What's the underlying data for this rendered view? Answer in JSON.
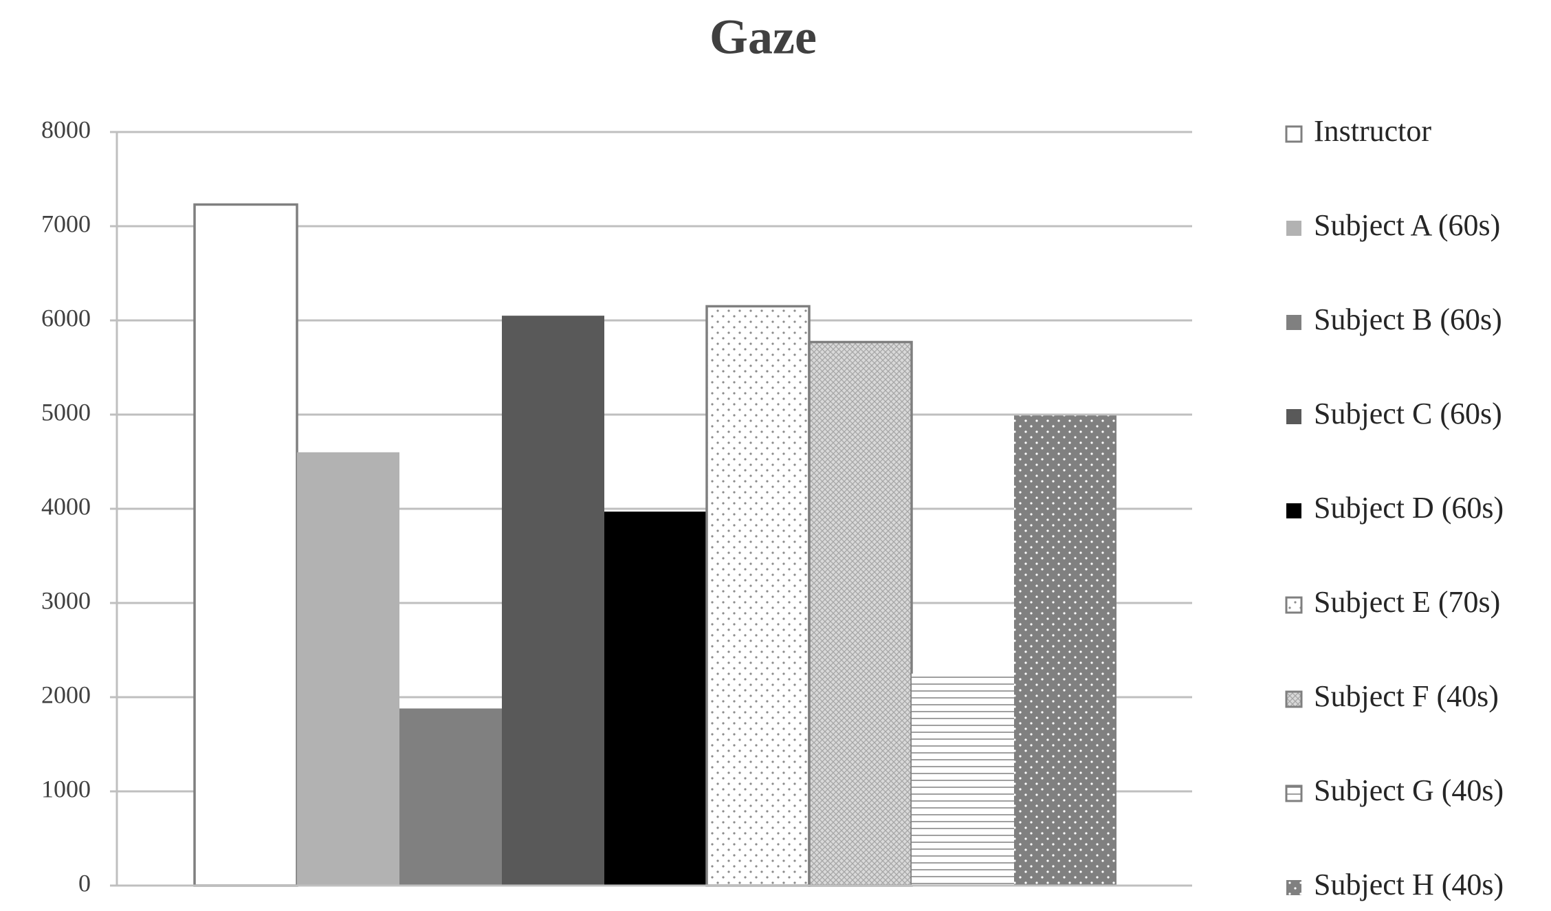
{
  "chart_data": {
    "type": "bar",
    "title": "Gaze",
    "series": [
      {
        "name": "Instructor",
        "color": "#ffffff",
        "edgecolor": "#7f7f7f",
        "values": [
          7230
        ]
      },
      {
        "name": "Subject A (60s)",
        "color": "#b2b2b2",
        "values": [
          4600
        ]
      },
      {
        "name": "Subject B (60s)",
        "color": "#808080",
        "values": [
          1880
        ]
      },
      {
        "name": "Subject C (60s)",
        "color": "#595959",
        "values": [
          6050
        ]
      },
      {
        "name": "Subject D (60s)",
        "color": "#000000",
        "values": [
          3970
        ]
      },
      {
        "name": "Subject E (70s)",
        "color": "#ffffff",
        "edgecolor": "#7f7f7f",
        "pattern": "dots",
        "values": [
          6150
        ]
      },
      {
        "name": "Subject F (40s)",
        "color": "#d9d9d9",
        "edgecolor": "#7f7f7f",
        "pattern": "crosshatch",
        "values": [
          5770
        ]
      },
      {
        "name": "Subject G (40s)",
        "color": "#ffffff",
        "pattern": "hlines",
        "values": [
          2250
        ]
      },
      {
        "name": "Subject H (40s)",
        "color": "#808080",
        "pattern": "dots",
        "values": [
          4990
        ]
      }
    ],
    "ylim": [
      0,
      8000
    ],
    "yticks": [
      0,
      1000,
      2000,
      3000,
      4000,
      5000,
      6000,
      7000,
      8000
    ],
    "grid": true,
    "legend": "right"
  }
}
